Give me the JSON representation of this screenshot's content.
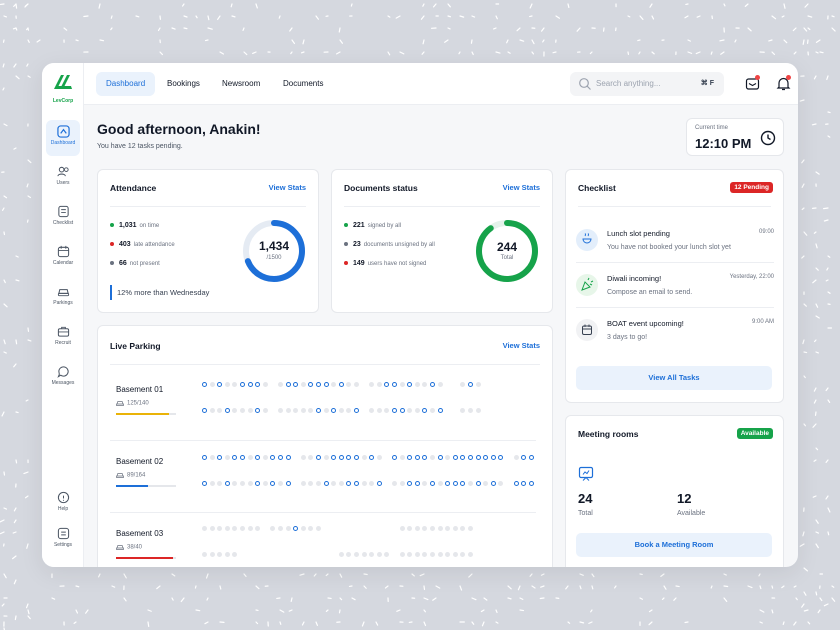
{
  "app": {
    "brand": "LevCorp"
  },
  "sidebar": {
    "items": [
      {
        "label": "Dashboard",
        "icon": "dashboard-icon",
        "active": true
      },
      {
        "label": "Users",
        "icon": "users-icon"
      },
      {
        "label": "Checklist",
        "icon": "checklist-icon"
      },
      {
        "label": "Calendar",
        "icon": "calendar-icon"
      },
      {
        "label": "Parkings",
        "icon": "car-icon"
      },
      {
        "label": "Recruit",
        "icon": "briefcase-icon"
      },
      {
        "label": "Messages",
        "icon": "messages-icon"
      }
    ],
    "bottom": [
      {
        "label": "Help",
        "icon": "help-icon"
      },
      {
        "label": "Settings",
        "icon": "settings-icon"
      }
    ]
  },
  "topbar": {
    "tabs": [
      {
        "label": "Dashboard",
        "active": true
      },
      {
        "label": "Bookings"
      },
      {
        "label": "Newsroom"
      },
      {
        "label": "Documents"
      }
    ],
    "search": {
      "placeholder": "Search anything...",
      "shortcut": "⌘ F"
    }
  },
  "greeting": {
    "title": "Good afternoon, Anakin!",
    "subtitle": "You have 12 tasks pending."
  },
  "current_time": {
    "label": "Current time",
    "value": "12:10 PM"
  },
  "attendance": {
    "title": "Attendance",
    "link": "View Stats",
    "rows": [
      {
        "value": "1,031",
        "label": "on time",
        "color": "#16a34a"
      },
      {
        "value": "403",
        "label": "late attendance",
        "color": "#dc2626"
      },
      {
        "value": "66",
        "label": "not present",
        "color": "#6b7280"
      }
    ],
    "donut": {
      "value": "1,434",
      "sub": "/1500",
      "fraction": 0.69,
      "color": "#1d6fd8"
    },
    "note": "12% more than Wednesday"
  },
  "documents": {
    "title": "Documents status",
    "link": "View Stats",
    "rows": [
      {
        "value": "221",
        "label": "signed by all",
        "color": "#16a34a"
      },
      {
        "value": "23",
        "label": "documents unsigned by all",
        "color": "#6b7280"
      },
      {
        "value": "149",
        "label": "users have not signed",
        "color": "#dc2626"
      }
    ],
    "donut": {
      "value": "244",
      "sub": "Total",
      "fraction": 0.9,
      "color": "#16a34a"
    }
  },
  "parking": {
    "title": "Live Parking",
    "link": "View Stats",
    "basements": [
      {
        "name": "Basement 01",
        "count": "125/140",
        "fill": 0.89,
        "color": "#eab308",
        "rows": [
          "OOOOOOOOO.OOOOOOOOOOO.OOOOOOOOOO..OOO",
          "OOOOOOOOO.OOOOOOOOOOO.OOOOOOOOOO..OOO"
        ],
        "occ": [
          [
            0,
            2,
            5,
            6,
            7,
            10,
            11,
            13,
            14,
            15,
            17,
            22,
            23,
            25,
            28,
            31,
            34,
            35
          ],
          [
            0,
            3,
            7,
            14,
            16,
            19,
            23,
            24,
            27,
            29,
            33,
            35
          ]
        ]
      },
      {
        "name": "Basement 02",
        "count": "89/164",
        "fill": 0.54,
        "color": "#1d6fd8",
        "rows": [
          "OOOOOOOOOOOO.OOOOOOOOOOO.OOOOOOOOOOOOOOO.OOO",
          "OOOOOOOOOOOO.OOOOOOOOOOO.OOOOOOOOOOOOOOO.OOO"
        ],
        "occ": [
          [
            0,
            2,
            4,
            5,
            7,
            9,
            10,
            11,
            14,
            16,
            17,
            18,
            19,
            21,
            23,
            25,
            26,
            27,
            29,
            31,
            32,
            33,
            34,
            35,
            36,
            37,
            39,
            40
          ],
          [
            0,
            3,
            7,
            9,
            11,
            15,
            18,
            19,
            22,
            25,
            26,
            28,
            30,
            31,
            32,
            34,
            36,
            38,
            39,
            40
          ]
        ]
      },
      {
        "name": "Basement 03",
        "count": "38/40",
        "fill": 0.95,
        "color": "#dc2626",
        "rows": [
          "OOOOOOOO.OOOOOOO..........OOOOOOOOOO",
          "OOOOO.............OOOOOOO.OOOOOOOOOO"
        ],
        "occ": [
          [
            11
          ],
          []
        ]
      }
    ]
  },
  "checklist": {
    "title": "Checklist",
    "badge": "12 Pending",
    "items": [
      {
        "title": "Lunch slot pending",
        "time": "09:00",
        "desc": "You have not booked your lunch slot yet",
        "icon": "lunch-icon"
      },
      {
        "title": "Diwali incoming!",
        "time": "Yesterday, 22:00",
        "desc": "Compose an email to send.",
        "icon": "confetti-icon"
      },
      {
        "title": "BOAT event upcoming!",
        "time": "9:00 AM",
        "desc": "3 days to go!",
        "icon": "calendar-icon"
      }
    ],
    "button": "View All Tasks"
  },
  "meeting": {
    "title": "Meeting rooms",
    "badge": "Available",
    "total": "24",
    "total_label": "Total",
    "available": "12",
    "available_label": "Available",
    "button": "Book a Meeting Room"
  },
  "colors": {
    "accent": "#1d6fd8",
    "green": "#16a34a",
    "red": "#dc2626"
  }
}
